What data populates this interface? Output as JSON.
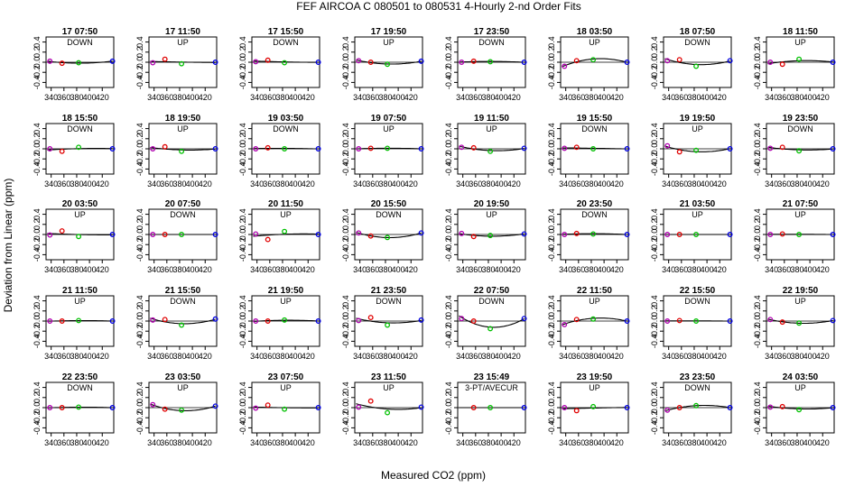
{
  "chart_data": {
    "type": "scatter",
    "title": "FEF   AIRCOA C   080501 to 080531   4-Hourly 2-nd Order Fits",
    "xlabel": "Measured CO2 (ppm)",
    "ylabel": "Deviation from Linear (ppm)",
    "xlim": [
      332,
      438
    ],
    "ylim": [
      -0.5,
      0.5
    ],
    "xticks": [
      340,
      360,
      380,
      400,
      420
    ],
    "xtick_labels": [
      "340",
      "",
      "380",
      "",
      "420"
    ],
    "xtick_labels_alt": [
      "",
      "360",
      "",
      "400",
      ""
    ],
    "yticks": [
      -0.4,
      -0.2,
      0.0,
      0.2,
      0.4
    ],
    "ytick_labels": [
      "-0.4",
      "",
      "0.0",
      "",
      "0.4"
    ],
    "ytick_labels_alt": [
      "",
      "-0.2",
      "",
      "0.2",
      ""
    ],
    "standards_x": [
      338,
      357,
      383,
      436
    ],
    "standard_colors": [
      "#b000b0",
      "#e00000",
      "#00c000",
      "#0000e0"
    ],
    "curve_color": "#000000",
    "panels": [
      {
        "title": "17 07:50",
        "mode": "DOWN",
        "y": [
          0.02,
          -0.02,
          -0.01,
          0.02
        ]
      },
      {
        "title": "17 11:50",
        "mode": "UP",
        "y": [
          -0.01,
          0.06,
          -0.03,
          0.0
        ]
      },
      {
        "title": "17 15:50",
        "mode": "DOWN",
        "y": [
          0.01,
          0.04,
          -0.01,
          0.0
        ]
      },
      {
        "title": "17 19:50",
        "mode": "UP",
        "y": [
          0.03,
          0.0,
          -0.04,
          0.02
        ]
      },
      {
        "title": "17 23:50",
        "mode": "DOWN",
        "y": [
          0.0,
          0.02,
          0.01,
          0.0
        ]
      },
      {
        "title": "18 03:50",
        "mode": "UP",
        "y": [
          -0.08,
          0.03,
          0.05,
          0.0
        ]
      },
      {
        "title": "18 07:50",
        "mode": "DOWN",
        "y": [
          0.03,
          0.05,
          -0.08,
          0.03
        ]
      },
      {
        "title": "18 11:50",
        "mode": "UP",
        "y": [
          0.0,
          -0.04,
          0.06,
          0.0
        ]
      },
      {
        "title": "18 15:50",
        "mode": "DOWN",
        "y": [
          0.0,
          -0.05,
          0.03,
          0.0
        ]
      },
      {
        "title": "18 19:50",
        "mode": "UP",
        "y": [
          0.0,
          0.04,
          -0.05,
          0.0
        ]
      },
      {
        "title": "19 03:50",
        "mode": "DOWN",
        "y": [
          0.0,
          0.02,
          0.0,
          0.0
        ]
      },
      {
        "title": "19 07:50",
        "mode": "UP",
        "y": [
          0.0,
          0.01,
          0.01,
          0.0
        ]
      },
      {
        "title": "19 11:50",
        "mode": "UP",
        "y": [
          0.03,
          0.02,
          -0.05,
          0.01
        ]
      },
      {
        "title": "19 15:50",
        "mode": "DOWN",
        "y": [
          0.01,
          0.03,
          0.0,
          0.0
        ]
      },
      {
        "title": "19 19:50",
        "mode": "UP",
        "y": [
          0.06,
          -0.06,
          -0.03,
          0.0
        ]
      },
      {
        "title": "19 23:50",
        "mode": "DOWN",
        "y": [
          0.01,
          0.03,
          -0.04,
          0.0
        ]
      },
      {
        "title": "20 03:50",
        "mode": "UP",
        "y": [
          -0.01,
          0.07,
          -0.04,
          0.0
        ]
      },
      {
        "title": "20 07:50",
        "mode": "DOWN",
        "y": [
          0.0,
          0.0,
          0.0,
          0.0
        ]
      },
      {
        "title": "20 11:50",
        "mode": "UP",
        "y": [
          0.01,
          -0.1,
          0.06,
          0.0
        ]
      },
      {
        "title": "20 15:50",
        "mode": "DOWN",
        "y": [
          0.03,
          -0.03,
          -0.06,
          0.03
        ]
      },
      {
        "title": "20 19:50",
        "mode": "UP",
        "y": [
          0.02,
          -0.04,
          -0.02,
          0.01
        ]
      },
      {
        "title": "20 23:50",
        "mode": "DOWN",
        "y": [
          0.0,
          0.02,
          0.01,
          0.0
        ]
      },
      {
        "title": "21 03:50",
        "mode": "UP",
        "y": [
          0.0,
          0.0,
          0.0,
          0.0
        ]
      },
      {
        "title": "21 07:50",
        "mode": "UP",
        "y": [
          0.0,
          0.01,
          0.0,
          0.0
        ]
      },
      {
        "title": "21 11:50",
        "mode": "UP",
        "y": [
          0.0,
          0.0,
          0.01,
          0.0
        ]
      },
      {
        "title": "21 15:50",
        "mode": "DOWN",
        "y": [
          0.02,
          0.03,
          -0.08,
          0.04
        ]
      },
      {
        "title": "21 19:50",
        "mode": "UP",
        "y": [
          0.0,
          0.0,
          0.02,
          0.0
        ]
      },
      {
        "title": "21 23:50",
        "mode": "DOWN",
        "y": [
          0.01,
          0.07,
          -0.08,
          0.02
        ]
      },
      {
        "title": "22 07:50",
        "mode": "DOWN",
        "y": [
          0.05,
          0.0,
          -0.15,
          0.05
        ]
      },
      {
        "title": "22 11:50",
        "mode": "UP",
        "y": [
          -0.07,
          0.03,
          0.04,
          0.0
        ]
      },
      {
        "title": "22 15:50",
        "mode": "DOWN",
        "y": [
          0.0,
          0.01,
          0.0,
          0.0
        ]
      },
      {
        "title": "22 19:50",
        "mode": "UP",
        "y": [
          0.03,
          -0.02,
          -0.04,
          0.01
        ]
      },
      {
        "title": "22 23:50",
        "mode": "DOWN",
        "y": [
          0.0,
          0.0,
          0.01,
          0.0
        ]
      },
      {
        "title": "23 03:50",
        "mode": "UP",
        "y": [
          0.06,
          -0.03,
          -0.05,
          0.03
        ]
      },
      {
        "title": "23 07:50",
        "mode": "UP",
        "y": [
          -0.01,
          0.05,
          -0.03,
          0.0
        ]
      },
      {
        "title": "23 11:50",
        "mode": "UP",
        "y": [
          0.01,
          0.13,
          -0.1,
          0.01
        ]
      },
      {
        "title": "23 15:49",
        "mode": "3-PT/AVECUR",
        "y": [
          null,
          0.0,
          0.0,
          0.0
        ]
      },
      {
        "title": "23 19:50",
        "mode": "UP",
        "y": [
          0.0,
          -0.06,
          0.02,
          0.0
        ]
      },
      {
        "title": "23 23:50",
        "mode": "DOWN",
        "y": [
          -0.05,
          0.0,
          0.04,
          0.0
        ]
      },
      {
        "title": "24 03:50",
        "mode": "UP",
        "y": [
          0.01,
          0.02,
          -0.04,
          0.0
        ]
      }
    ]
  }
}
